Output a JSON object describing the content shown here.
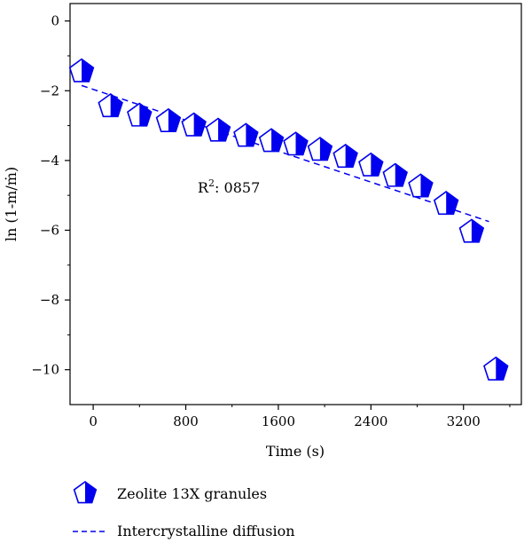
{
  "chart_data": {
    "type": "scatter",
    "xlabel": "Time (s)",
    "ylabel": "ln (1-m/ṁ)",
    "xlim": [
      -200,
      3700
    ],
    "ylim": [
      -11,
      0.5
    ],
    "xticks": [
      0,
      800,
      1600,
      2400,
      3200
    ],
    "xtick_labels": [
      "0",
      "800",
      "1600",
      "2400",
      "3200"
    ],
    "yticks": [
      0,
      -2,
      -4,
      -6,
      -8,
      -10
    ],
    "ytick_labels": [
      "0",
      "−2",
      "−4",
      "−6",
      "−8",
      "−10"
    ],
    "annotation": {
      "base": "R",
      "superscript": "2",
      "rest": ": 0857"
    },
    "grid": false,
    "legend_position": "bottom",
    "series": [
      {
        "name": "Zeolite 13X granules",
        "kind": "markers",
        "marker": "half-filled-pentagon",
        "color": "#0000ee",
        "x": [
          -100,
          150,
          400,
          650,
          870,
          1080,
          1320,
          1540,
          1750,
          1960,
          2180,
          2400,
          2610,
          2830,
          3050,
          3270,
          3480
        ],
        "y": [
          -1.45,
          -2.45,
          -2.72,
          -2.88,
          -3.0,
          -3.15,
          -3.3,
          -3.45,
          -3.55,
          -3.7,
          -3.9,
          -4.15,
          -4.45,
          -4.75,
          -5.25,
          -6.05,
          -10.0
        ]
      },
      {
        "name": "Intercrystalline diffusion",
        "kind": "dashed-line",
        "color": "#0000ee",
        "x": [
          -100,
          3420
        ],
        "y": [
          -1.85,
          -5.75
        ]
      }
    ]
  }
}
